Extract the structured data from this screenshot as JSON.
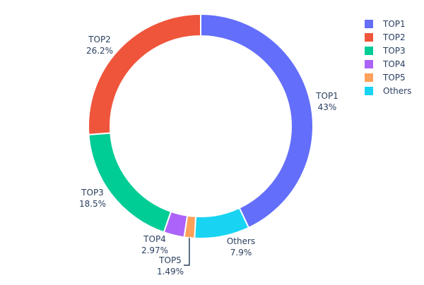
{
  "chart_data": {
    "type": "pie",
    "hole": true,
    "direction": "clockwise",
    "start": "top",
    "slices": [
      {
        "label": "TOP1",
        "value": 43,
        "text": "43%",
        "color": "#636efa"
      },
      {
        "label": "Others",
        "value": 7.9,
        "text": "7.9%",
        "color": "#19d3f3"
      },
      {
        "label": "TOP5",
        "value": 1.49,
        "text": "1.49%",
        "color": "#ffa15a"
      },
      {
        "label": "TOP4",
        "value": 2.97,
        "text": "2.97%",
        "color": "#ab63fa"
      },
      {
        "label": "TOP3",
        "value": 18.5,
        "text": "18.5%",
        "color": "#00cc96"
      },
      {
        "label": "TOP2",
        "value": 26.2,
        "text": "26.2%",
        "color": "#ef553b"
      }
    ],
    "legend": {
      "placement": "top-right",
      "entries": [
        "TOP1",
        "TOP2",
        "TOP3",
        "TOP4",
        "TOP5",
        "Others"
      ]
    }
  }
}
